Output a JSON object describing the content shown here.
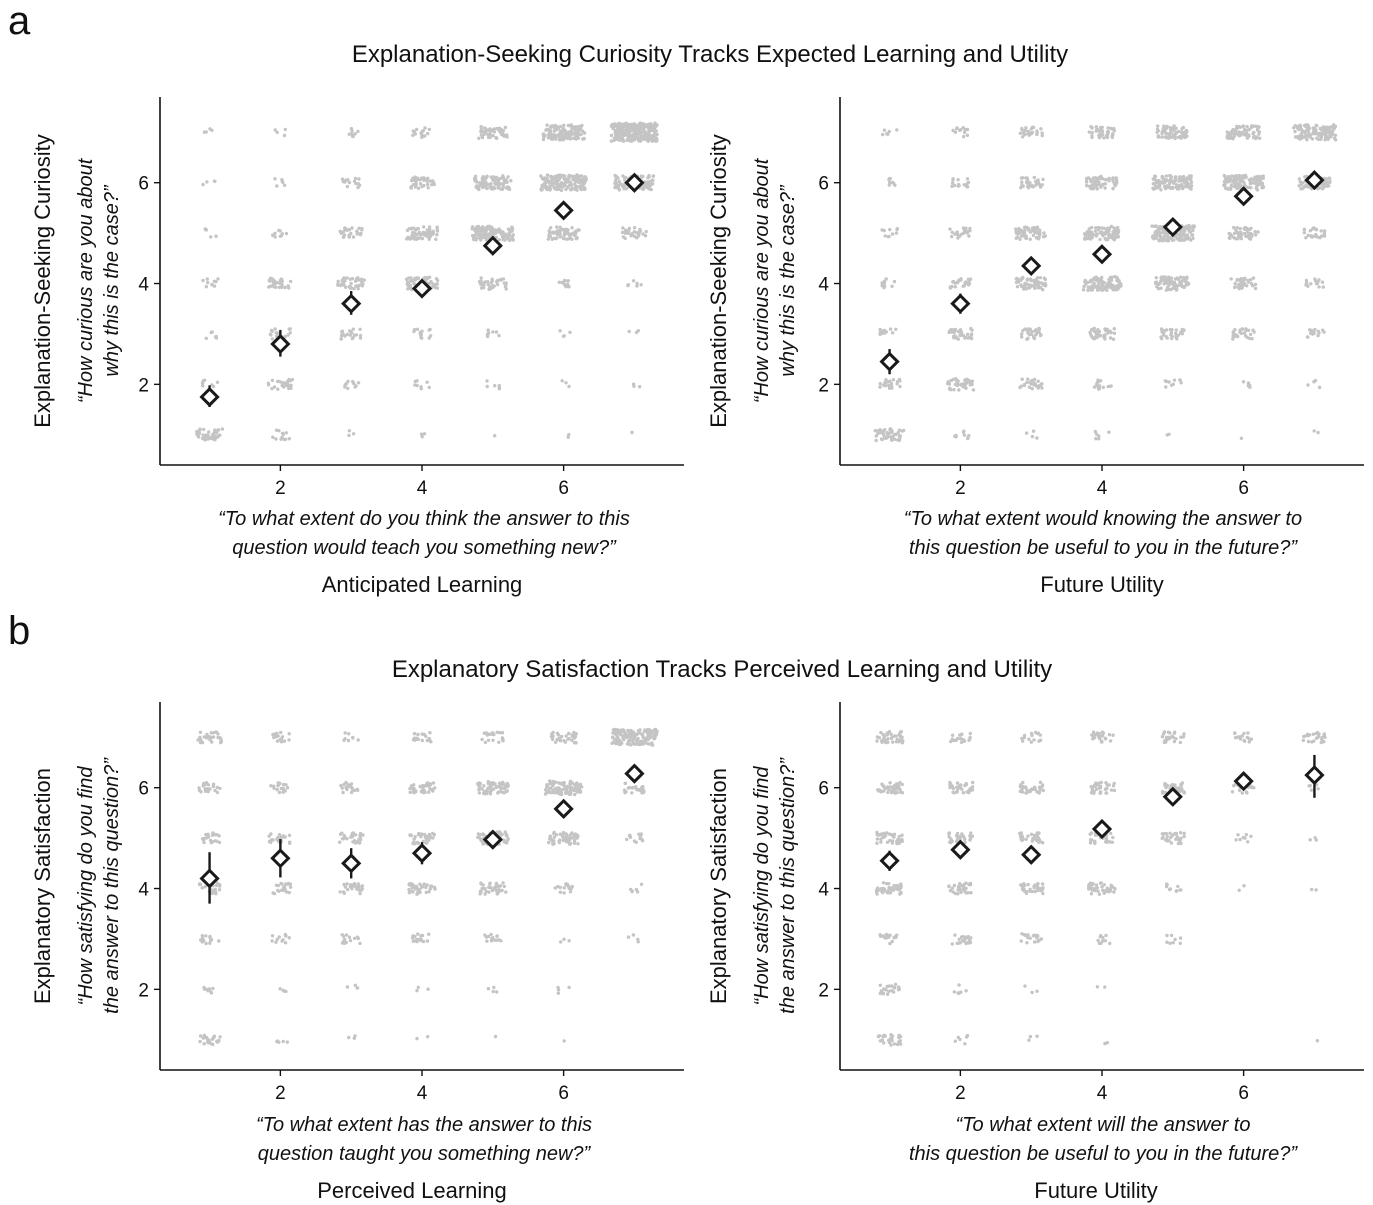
{
  "figure": {
    "panel_a": {
      "letter": "a",
      "title": "Explanation-Seeking Curiosity Tracks Expected Learning and Utility"
    },
    "panel_b": {
      "letter": "b",
      "title": "Explanatory Satisfaction Tracks Perceived Learning and Utility"
    }
  },
  "style": {
    "point_color": "#c4c4c4",
    "mean_color": "#1a1a1a",
    "axis_color": "#111111"
  },
  "chart_data": [
    {
      "type": "scatter",
      "panel": "a",
      "title": "",
      "xlabel": "Anticipated Learning",
      "xlabel_question": [
        "“To what extent do you think the answer to this",
        "question would teach you something new?”"
      ],
      "ylabel": "Explanation-Seeking Curiosity",
      "ylabel_question": [
        "“How curious are you about",
        "why this is the case?”"
      ],
      "x_ticks": [
        2,
        4,
        6
      ],
      "y_ticks": [
        2,
        4,
        6
      ],
      "xlim": [
        0.3,
        7.7
      ],
      "ylim": [
        0.4,
        7.7
      ],
      "x": [
        1,
        2,
        3,
        4,
        5,
        6,
        7
      ],
      "means": [
        1.75,
        2.8,
        3.6,
        3.9,
        4.75,
        5.45,
        6.0
      ],
      "ci_low": [
        1.55,
        2.55,
        3.38,
        3.8,
        4.65,
        5.35,
        5.88
      ],
      "ci_high": [
        1.98,
        3.08,
        3.85,
        4.0,
        4.85,
        5.56,
        6.12
      ],
      "counts": [
        [
          40,
          12,
          3,
          3,
          1,
          2,
          1
        ],
        [
          8,
          30,
          10,
          8,
          6,
          3,
          3
        ],
        [
          6,
          18,
          22,
          14,
          8,
          4,
          3
        ],
        [
          10,
          30,
          40,
          60,
          40,
          10,
          6
        ],
        [
          5,
          10,
          25,
          60,
          120,
          60,
          30
        ],
        [
          4,
          6,
          15,
          35,
          90,
          160,
          110
        ],
        [
          4,
          4,
          8,
          15,
          50,
          130,
          260
        ]
      ]
    },
    {
      "type": "scatter",
      "panel": "a",
      "title": "",
      "xlabel": "Future Utility",
      "xlabel_question": [
        "“To what extent would knowing the answer to",
        "this question be useful to you in the future?”"
      ],
      "ylabel": "Explanation-Seeking Curiosity",
      "ylabel_question": [
        "“How curious are you about",
        "why this is the case?”"
      ],
      "x_ticks": [
        2,
        4,
        6
      ],
      "y_ticks": [
        2,
        4,
        6
      ],
      "xlim": [
        0.3,
        7.7
      ],
      "ylim": [
        0.4,
        7.7
      ],
      "x": [
        1,
        2,
        3,
        4,
        5,
        6,
        7
      ],
      "means": [
        2.45,
        3.6,
        4.35,
        4.58,
        5.12,
        5.73,
        6.05
      ],
      "ci_low": [
        2.2,
        3.4,
        4.2,
        4.45,
        5.02,
        5.63,
        5.9
      ],
      "ci_high": [
        2.7,
        3.8,
        4.5,
        4.72,
        5.22,
        5.84,
        6.22
      ],
      "counts": [
        [
          50,
          10,
          4,
          6,
          2,
          1,
          2
        ],
        [
          20,
          40,
          25,
          15,
          10,
          6,
          4
        ],
        [
          15,
          35,
          30,
          40,
          30,
          25,
          15
        ],
        [
          12,
          25,
          60,
          100,
          80,
          35,
          15
        ],
        [
          10,
          20,
          60,
          80,
          140,
          50,
          25
        ],
        [
          8,
          15,
          30,
          60,
          110,
          110,
          60
        ],
        [
          6,
          12,
          25,
          40,
          60,
          70,
          130
        ]
      ]
    },
    {
      "type": "scatter",
      "panel": "b",
      "title": "",
      "xlabel": "Perceived Learning",
      "xlabel_question": [
        "“To what extent has the answer to this",
        "question taught you something new?”"
      ],
      "ylabel": "Explanatory Satisfaction",
      "ylabel_question": [
        "“How satisfying do you find",
        "the answer to this question?”"
      ],
      "x_ticks": [
        2,
        4,
        6
      ],
      "y_ticks": [
        2,
        4,
        6
      ],
      "xlim": [
        0.3,
        7.7
      ],
      "ylim": [
        0.4,
        7.7
      ],
      "x": [
        1,
        2,
        3,
        4,
        5,
        6,
        7
      ],
      "means": [
        4.2,
        4.6,
        4.5,
        4.7,
        4.97,
        5.58,
        6.28
      ],
      "ci_low": [
        3.7,
        4.22,
        4.2,
        4.48,
        4.82,
        5.45,
        6.15
      ],
      "ci_high": [
        4.72,
        4.98,
        4.8,
        4.92,
        5.12,
        5.72,
        6.4
      ],
      "counts": [
        [
          25,
          5,
          3,
          2,
          1,
          1,
          0
        ],
        [
          8,
          4,
          4,
          3,
          4,
          4,
          0
        ],
        [
          14,
          12,
          14,
          16,
          15,
          3,
          4
        ],
        [
          25,
          20,
          25,
          40,
          40,
          15,
          6
        ],
        [
          20,
          25,
          30,
          35,
          60,
          55,
          12
        ],
        [
          20,
          18,
          20,
          35,
          60,
          90,
          25
        ],
        [
          30,
          18,
          8,
          18,
          22,
          35,
          150
        ]
      ]
    },
    {
      "type": "scatter",
      "panel": "b",
      "title": "",
      "xlabel": "Future Utility",
      "xlabel_question": [
        "“To what extent will the answer to",
        "this question be useful to you in the future?”"
      ],
      "ylabel": "Explanatory Satisfaction",
      "ylabel_question": [
        "“How satisfying do you find",
        "the answer to this question?”"
      ],
      "x_ticks": [
        2,
        4,
        6
      ],
      "y_ticks": [
        2,
        4,
        6
      ],
      "xlim": [
        0.3,
        7.7
      ],
      "ylim": [
        0.4,
        7.7
      ],
      "x": [
        1,
        2,
        3,
        4,
        5,
        6,
        7
      ],
      "means": [
        4.55,
        4.77,
        4.67,
        5.18,
        5.82,
        6.13,
        6.25
      ],
      "ci_low": [
        4.35,
        4.6,
        4.5,
        5.02,
        5.68,
        6.0,
        5.8
      ],
      "ci_high": [
        4.75,
        4.95,
        4.84,
        5.34,
        5.96,
        6.26,
        6.65
      ],
      "counts": [
        [
          25,
          6,
          3,
          2,
          0,
          0,
          1
        ],
        [
          20,
          6,
          3,
          2,
          0,
          0,
          0
        ],
        [
          15,
          20,
          20,
          10,
          8,
          0,
          0
        ],
        [
          40,
          30,
          30,
          40,
          10,
          2,
          2
        ],
        [
          40,
          30,
          30,
          30,
          30,
          8,
          3
        ],
        [
          40,
          35,
          30,
          35,
          30,
          25,
          5
        ],
        [
          40,
          20,
          15,
          25,
          25,
          15,
          25
        ]
      ]
    }
  ]
}
